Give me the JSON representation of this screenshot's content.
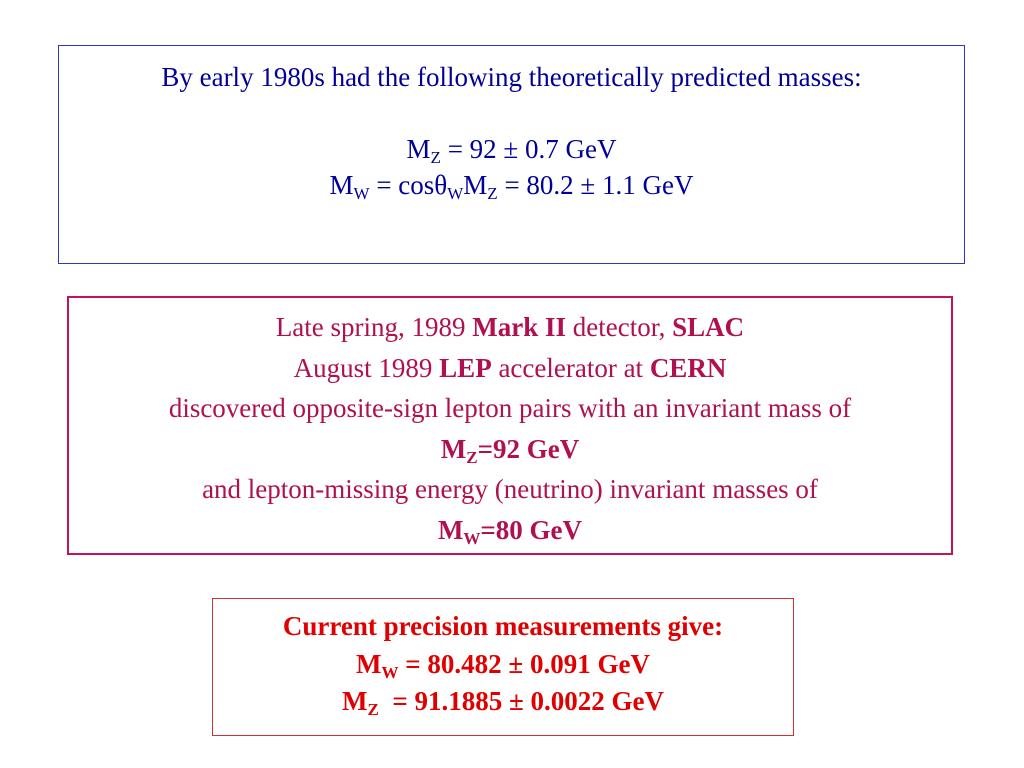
{
  "box_predicted": {
    "intro": "By early 1980s had the following theoretically predicted masses:",
    "mz_line": {
      "symbol": "M",
      "sub": "Z",
      "rest": " = 92 ± 0.7 GeV"
    },
    "mw_line": {
      "symbol": "M",
      "sub_w": "W",
      "mid": " = cosθ",
      "sub_theta": "W",
      "symbol2": "M",
      "sub_z": "Z",
      "rest": " = 80.2 ± 1.1 GeV"
    },
    "text_color": "#000099",
    "border_color": "#3333cc"
  },
  "box_discovery": {
    "line1_a": "Late spring, 1989 ",
    "line1_b": "Mark II",
    "line1_c": " detector, ",
    "line1_d": "SLAC",
    "line2_a": "August 1989 ",
    "line2_b": "LEP",
    "line2_c": " accelerator at ",
    "line2_d": "CERN",
    "line3": "discovered opposite-sign lepton pairs with an invariant mass of",
    "mz_symbol": "M",
    "mz_sub": "Z",
    "mz_rest": "=92 GeV",
    "line5": "and lepton-missing energy (neutrino) invariant masses of",
    "mw_symbol": "M",
    "mw_sub": "W",
    "mw_rest": "=80 GeV",
    "text_color": "#b0104f",
    "border_color": "#c0145c"
  },
  "box_current": {
    "heading": "Current precision measurements give:",
    "mw_symbol": "M",
    "mw_sub": "W",
    "mw_rest": " = 80.482 ± 0.091 GeV",
    "mz_symbol": "M",
    "mz_sub": "Z",
    "mz_rest": "  = 91.1885 ± 0.0022 GeV",
    "text_color": "#e00000",
    "border_color": "#cc3333"
  }
}
